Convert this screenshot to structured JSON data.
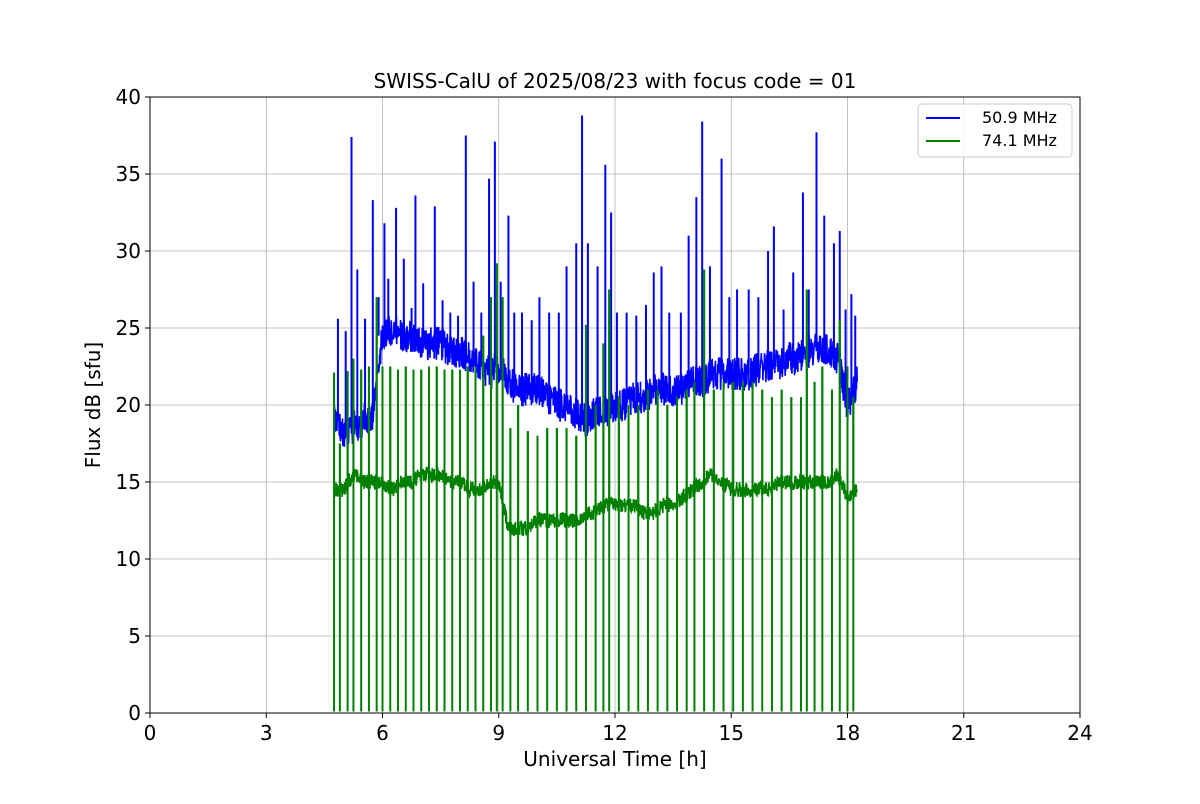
{
  "chart_data": {
    "type": "line",
    "title": "SWISS-CalU of 2025/08/23 with focus code = 01",
    "xlabel": "Universal Time [h]",
    "ylabel": "Flux dB [sfu]",
    "xlim": [
      0,
      24
    ],
    "ylim": [
      0,
      40
    ],
    "xticks": [
      0,
      3,
      6,
      9,
      12,
      15,
      18,
      21,
      24
    ],
    "yticks": [
      0,
      5,
      10,
      15,
      20,
      25,
      30,
      35,
      40
    ],
    "grid": true,
    "legend_position": "top-right",
    "x": [
      4.75,
      5.0,
      5.25,
      5.5,
      5.75,
      6.0,
      6.25,
      6.5,
      6.75,
      7.0,
      7.25,
      7.5,
      7.75,
      8.0,
      8.25,
      8.5,
      8.75,
      9.0,
      9.25,
      9.5,
      9.75,
      10.0,
      10.25,
      10.5,
      10.75,
      11.0,
      11.25,
      11.5,
      11.75,
      12.0,
      12.25,
      12.5,
      12.75,
      13.0,
      13.25,
      13.5,
      13.75,
      14.0,
      14.25,
      14.5,
      14.75,
      15.0,
      15.25,
      15.5,
      15.75,
      16.0,
      16.25,
      16.5,
      16.75,
      17.0,
      17.25,
      17.5,
      17.75,
      18.0,
      18.25
    ],
    "series": [
      {
        "name": "50.9 MHz",
        "color": "#0000ff",
        "values": [
          19.5,
          18.0,
          18.5,
          19.0,
          19.5,
          24.5,
          25.0,
          24.5,
          24.5,
          24.0,
          24.0,
          24.0,
          23.5,
          23.5,
          23.0,
          22.5,
          22.0,
          22.5,
          21.5,
          21.0,
          21.0,
          21.0,
          20.5,
          20.0,
          20.0,
          19.5,
          19.0,
          19.5,
          19.5,
          20.0,
          20.0,
          20.5,
          20.5,
          21.0,
          21.0,
          21.0,
          21.0,
          21.5,
          21.5,
          22.0,
          22.0,
          22.0,
          22.0,
          22.0,
          22.5,
          22.5,
          22.5,
          23.0,
          23.0,
          23.5,
          23.5,
          23.5,
          23.0,
          20.0,
          21.5
        ],
        "spikes": [
          {
            "x": 4.85,
            "y": 25.6
          },
          {
            "x": 5.05,
            "y": 24.8
          },
          {
            "x": 5.2,
            "y": 37.4
          },
          {
            "x": 5.35,
            "y": 28.8
          },
          {
            "x": 5.55,
            "y": 25.6
          },
          {
            "x": 5.75,
            "y": 33.3
          },
          {
            "x": 5.9,
            "y": 27.0
          },
          {
            "x": 6.05,
            "y": 31.8
          },
          {
            "x": 6.15,
            "y": 28.2
          },
          {
            "x": 6.35,
            "y": 32.8
          },
          {
            "x": 6.55,
            "y": 29.5
          },
          {
            "x": 6.75,
            "y": 26.3
          },
          {
            "x": 6.85,
            "y": 33.6
          },
          {
            "x": 7.05,
            "y": 27.9
          },
          {
            "x": 7.35,
            "y": 32.9
          },
          {
            "x": 7.55,
            "y": 26.8
          },
          {
            "x": 7.75,
            "y": 26.0
          },
          {
            "x": 7.95,
            "y": 25.8
          },
          {
            "x": 8.15,
            "y": 37.5
          },
          {
            "x": 8.35,
            "y": 28.0
          },
          {
            "x": 8.55,
            "y": 26.0
          },
          {
            "x": 8.75,
            "y": 34.7
          },
          {
            "x": 8.9,
            "y": 37.1
          },
          {
            "x": 9.05,
            "y": 28.0
          },
          {
            "x": 9.25,
            "y": 32.3
          },
          {
            "x": 9.4,
            "y": 26.0
          },
          {
            "x": 9.6,
            "y": 26.0
          },
          {
            "x": 9.85,
            "y": 25.5
          },
          {
            "x": 10.05,
            "y": 27.0
          },
          {
            "x": 10.3,
            "y": 26.0
          },
          {
            "x": 10.55,
            "y": 26.0
          },
          {
            "x": 10.75,
            "y": 29.0
          },
          {
            "x": 11.0,
            "y": 30.5
          },
          {
            "x": 11.15,
            "y": 38.8
          },
          {
            "x": 11.3,
            "y": 30.5
          },
          {
            "x": 11.55,
            "y": 29.0
          },
          {
            "x": 11.75,
            "y": 35.6
          },
          {
            "x": 11.9,
            "y": 32.5
          },
          {
            "x": 12.05,
            "y": 26.0
          },
          {
            "x": 12.3,
            "y": 26.0
          },
          {
            "x": 12.55,
            "y": 25.8
          },
          {
            "x": 12.8,
            "y": 26.5
          },
          {
            "x": 13.0,
            "y": 28.6
          },
          {
            "x": 13.2,
            "y": 29.0
          },
          {
            "x": 13.4,
            "y": 26.0
          },
          {
            "x": 13.7,
            "y": 26.0
          },
          {
            "x": 13.9,
            "y": 31.0
          },
          {
            "x": 14.1,
            "y": 33.5
          },
          {
            "x": 14.25,
            "y": 38.4
          },
          {
            "x": 14.45,
            "y": 29.0
          },
          {
            "x": 14.75,
            "y": 36.0
          },
          {
            "x": 14.95,
            "y": 27.0
          },
          {
            "x": 15.15,
            "y": 27.5
          },
          {
            "x": 15.45,
            "y": 27.5
          },
          {
            "x": 15.7,
            "y": 27.0
          },
          {
            "x": 15.95,
            "y": 30.0
          },
          {
            "x": 16.1,
            "y": 31.6
          },
          {
            "x": 16.35,
            "y": 26.2
          },
          {
            "x": 16.6,
            "y": 28.6
          },
          {
            "x": 16.85,
            "y": 33.8
          },
          {
            "x": 17.0,
            "y": 27.5
          },
          {
            "x": 17.2,
            "y": 37.7
          },
          {
            "x": 17.4,
            "y": 32.3
          },
          {
            "x": 17.65,
            "y": 30.5
          },
          {
            "x": 17.8,
            "y": 31.3
          },
          {
            "x": 17.95,
            "y": 26.2
          },
          {
            "x": 18.1,
            "y": 27.2
          },
          {
            "x": 18.2,
            "y": 25.8
          }
        ]
      },
      {
        "name": "74.1 MHz",
        "color": "#008000",
        "values": [
          14.5,
          14.5,
          15.5,
          15.0,
          15.0,
          15.0,
          14.5,
          15.0,
          15.0,
          15.5,
          15.5,
          15.5,
          15.0,
          15.0,
          14.5,
          14.5,
          15.0,
          15.0,
          12.0,
          12.0,
          12.0,
          12.5,
          12.5,
          12.5,
          12.5,
          12.5,
          13.0,
          13.0,
          13.5,
          13.5,
          13.5,
          13.5,
          13.0,
          13.0,
          13.5,
          13.5,
          14.0,
          14.5,
          15.0,
          15.5,
          15.0,
          14.5,
          14.5,
          14.5,
          14.5,
          14.5,
          15.0,
          15.0,
          15.0,
          15.0,
          15.0,
          15.0,
          15.5,
          14.0,
          14.5
        ],
        "spikes": [
          {
            "x": 4.75,
            "y": 22.1
          },
          {
            "x": 4.9,
            "y": 17.5
          },
          {
            "x": 5.1,
            "y": 22.2
          },
          {
            "x": 5.25,
            "y": 23.0
          },
          {
            "x": 5.45,
            "y": 22.3
          },
          {
            "x": 5.65,
            "y": 22.5
          },
          {
            "x": 5.85,
            "y": 27.0
          },
          {
            "x": 6.0,
            "y": 22.5
          },
          {
            "x": 6.2,
            "y": 22.5
          },
          {
            "x": 6.4,
            "y": 22.3
          },
          {
            "x": 6.6,
            "y": 22.5
          },
          {
            "x": 6.8,
            "y": 22.3
          },
          {
            "x": 7.0,
            "y": 22.3
          },
          {
            "x": 7.2,
            "y": 22.5
          },
          {
            "x": 7.4,
            "y": 22.5
          },
          {
            "x": 7.6,
            "y": 22.3
          },
          {
            "x": 7.8,
            "y": 22.3
          },
          {
            "x": 8.0,
            "y": 22.3
          },
          {
            "x": 8.2,
            "y": 22.5
          },
          {
            "x": 8.4,
            "y": 22.5
          },
          {
            "x": 8.6,
            "y": 24.5
          },
          {
            "x": 8.8,
            "y": 27.0
          },
          {
            "x": 8.95,
            "y": 29.2
          },
          {
            "x": 9.1,
            "y": 27.0
          },
          {
            "x": 9.3,
            "y": 18.5
          },
          {
            "x": 9.5,
            "y": 20.0
          },
          {
            "x": 9.75,
            "y": 18.3
          },
          {
            "x": 10.0,
            "y": 18.0
          },
          {
            "x": 10.25,
            "y": 18.5
          },
          {
            "x": 10.5,
            "y": 18.5
          },
          {
            "x": 10.75,
            "y": 18.5
          },
          {
            "x": 11.0,
            "y": 18.0
          },
          {
            "x": 11.25,
            "y": 25.2
          },
          {
            "x": 11.5,
            "y": 20.0
          },
          {
            "x": 11.7,
            "y": 24.0
          },
          {
            "x": 11.85,
            "y": 27.5
          },
          {
            "x": 12.1,
            "y": 20.5
          },
          {
            "x": 12.35,
            "y": 20.0
          },
          {
            "x": 12.6,
            "y": 20.0
          },
          {
            "x": 12.85,
            "y": 21.0
          },
          {
            "x": 13.1,
            "y": 21.0
          },
          {
            "x": 13.35,
            "y": 20.0
          },
          {
            "x": 13.6,
            "y": 20.5
          },
          {
            "x": 13.85,
            "y": 21.0
          },
          {
            "x": 14.05,
            "y": 21.5
          },
          {
            "x": 14.3,
            "y": 28.8
          },
          {
            "x": 14.55,
            "y": 21.0
          },
          {
            "x": 14.8,
            "y": 21.5
          },
          {
            "x": 15.05,
            "y": 21.5
          },
          {
            "x": 15.3,
            "y": 21.5
          },
          {
            "x": 15.55,
            "y": 21.5
          },
          {
            "x": 15.8,
            "y": 21.0
          },
          {
            "x": 16.05,
            "y": 20.5
          },
          {
            "x": 16.3,
            "y": 21.0
          },
          {
            "x": 16.55,
            "y": 20.5
          },
          {
            "x": 16.8,
            "y": 20.5
          },
          {
            "x": 16.95,
            "y": 27.5
          },
          {
            "x": 17.15,
            "y": 21.5
          },
          {
            "x": 17.35,
            "y": 22.5
          },
          {
            "x": 17.6,
            "y": 21.0
          },
          {
            "x": 17.8,
            "y": 25.5
          },
          {
            "x": 18.0,
            "y": 22.5
          },
          {
            "x": 18.15,
            "y": 20.5
          }
        ]
      }
    ]
  }
}
